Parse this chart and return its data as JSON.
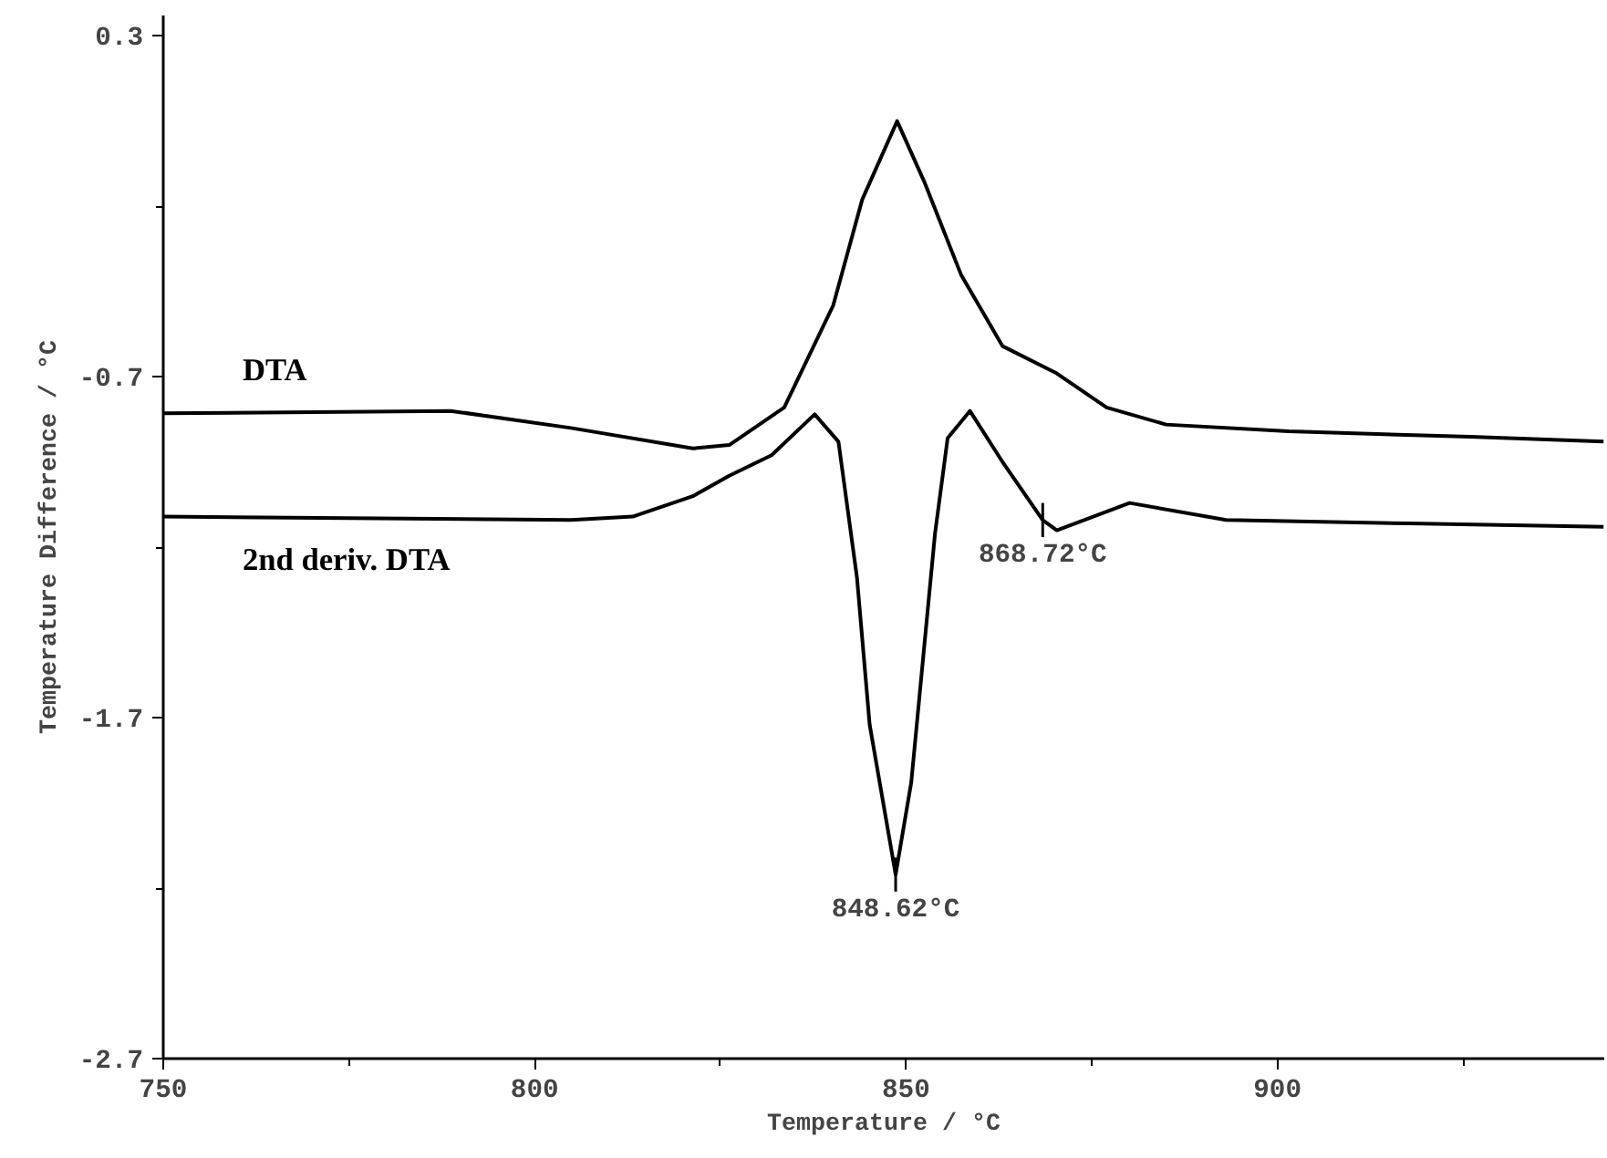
{
  "chart_data": {
    "type": "line",
    "xlabel": "Temperature / °C",
    "ylabel": "Temperature Difference / °C",
    "xlim": [
      750,
      944
    ],
    "ylim": [
      -2.7,
      0.36
    ],
    "xticks": [
      750,
      {
        "value": 775,
        "label": null
      },
      800,
      {
        "value": 825,
        "label": null
      },
      850,
      {
        "value": 875,
        "label": null
      },
      900,
      {
        "value": 925,
        "label": null
      }
    ],
    "yticks": [
      -2.7,
      {
        "value": -2.2,
        "label": null
      },
      -1.7,
      {
        "value": -1.2,
        "label": null
      },
      -0.7,
      {
        "value": -0.2,
        "label": null
      },
      0.3
    ],
    "grid": false,
    "marker": "none",
    "line_style": "solid",
    "series": [
      {
        "name": "DTA",
        "color": "#000000",
        "x": [
          750,
          788.7,
          804.9,
          821.3,
          826.2,
          833.6,
          840.2,
          844.1,
          848.8,
          852.5,
          857.4,
          863.0,
          870.3,
          877.0,
          885.0,
          901.5,
          926.0,
          943.9
        ],
        "values": [
          -0.807,
          -0.8,
          -0.85,
          -0.91,
          -0.9,
          -0.79,
          -0.49,
          -0.18,
          0.05,
          -0.13,
          -0.4,
          -0.61,
          -0.69,
          -0.79,
          -0.84,
          -0.86,
          -0.876,
          -0.89
        ]
      },
      {
        "name": "2nd deriv. DTA",
        "color": "#000000",
        "x": [
          750,
          804.9,
          813.2,
          821.3,
          826.2,
          831.9,
          837.7,
          840.9,
          843.4,
          845.1,
          848.6,
          850.7,
          853.9,
          855.6,
          858.6,
          863.0,
          868.4,
          870.3,
          880.1,
          893.1,
          917.6,
          943.9
        ],
        "values": [
          -1.11,
          -1.12,
          -1.11,
          -1.05,
          -0.99,
          -0.93,
          -0.81,
          -0.89,
          -1.29,
          -1.72,
          -2.16,
          -1.89,
          -1.16,
          -0.88,
          -0.8,
          -0.95,
          -1.12,
          -1.15,
          -1.07,
          -1.12,
          -1.13,
          -1.14
        ]
      }
    ],
    "annotations": [
      {
        "text": "848.62°C",
        "x": 848.6,
        "y": -2.16
      },
      {
        "text": "868.72°C",
        "x": 868.4,
        "y": -1.12
      }
    ]
  }
}
